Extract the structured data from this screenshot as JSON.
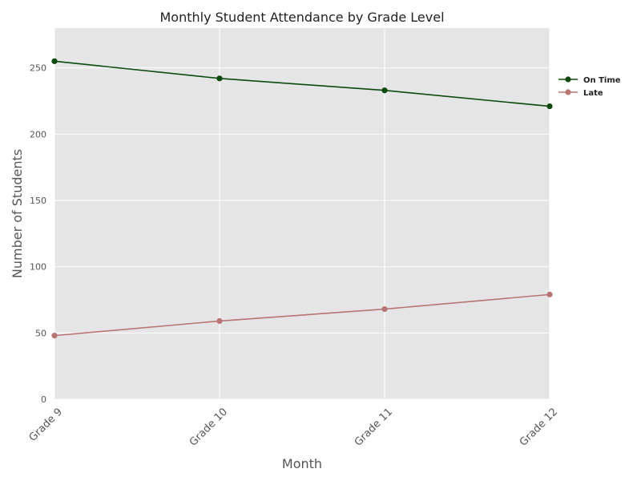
{
  "chart_data": {
    "type": "line",
    "title": "Monthly Student Attendance by Grade Level",
    "xlabel": "Month",
    "ylabel": "Number of Students",
    "categories": [
      "Grade 9",
      "Grade 10",
      "Grade 11",
      "Grade 12"
    ],
    "ylim": [
      0,
      280
    ],
    "yticks": [
      0,
      50,
      100,
      150,
      200,
      250
    ],
    "grid": true,
    "legend_position": "right",
    "background": "#e5e5e5",
    "series": [
      {
        "name": "On Time",
        "values": [
          255,
          242,
          233,
          221
        ],
        "color": "#0b4a0b"
      },
      {
        "name": "Late",
        "values": [
          48,
          59,
          68,
          79
        ],
        "color": "#b87571"
      }
    ]
  }
}
